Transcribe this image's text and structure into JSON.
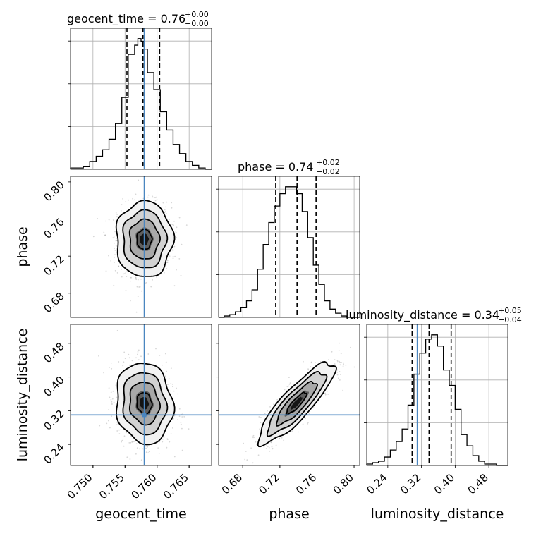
{
  "chart_data": {
    "type": "corner",
    "parameters": [
      "geocent_time",
      "phase",
      "luminosity_distance"
    ],
    "truths": {
      "geocent_time": 0.758,
      "phase": null,
      "luminosity_distance": 0.31
    },
    "axis_ranges": {
      "geocent_time": [
        0.7465,
        0.7685
      ],
      "phase": [
        0.654,
        0.806
      ],
      "luminosity_distance": [
        0.19,
        0.525
      ]
    },
    "ticks": {
      "geocent_time": [
        0.75,
        0.755,
        0.76,
        0.765
      ],
      "phase": [
        0.68,
        0.72,
        0.76,
        0.8
      ],
      "luminosity_distance": [
        0.24,
        0.32,
        0.4,
        0.48
      ]
    },
    "tick_labels": {
      "geocent_time": [
        "0.750",
        "0.755",
        "0.760",
        "0.765"
      ],
      "phase": [
        "0.68",
        "0.72",
        "0.76",
        "0.80"
      ],
      "luminosity_distance": [
        "0.24",
        "0.32",
        "0.40",
        "0.48"
      ]
    },
    "xlabels": [
      "geocent_time",
      "phase",
      "luminosity_distance"
    ],
    "ylabels": [
      "phase",
      "luminosity_distance"
    ],
    "titles": [
      {
        "param": "geocent_time",
        "label": "geocent_time = 0.76",
        "plus": "+0.00",
        "minus": "−0.00"
      },
      {
        "param": "phase",
        "label": "phase = 0.74",
        "plus": "+0.02",
        "minus": "−0.02"
      },
      {
        "param": "luminosity_distance",
        "label": "luminosity_distance = 0.34",
        "plus": "+0.05",
        "minus": "−0.04"
      }
    ],
    "quantiles": {
      "geocent_time": [
        0.7553,
        0.7578,
        0.7604
      ],
      "phase": [
        0.7155,
        0.7385,
        0.759
      ],
      "luminosity_distance": [
        0.2978,
        0.338,
        0.3905
      ]
    },
    "marginals": {
      "geocent_time": {
        "edges": [
          0.7465,
          0.7475,
          0.7485,
          0.7495,
          0.7505,
          0.7515,
          0.7525,
          0.7535,
          0.7545,
          0.7555,
          0.7565,
          0.757,
          0.7575,
          0.758,
          0.7585,
          0.7595,
          0.7605,
          0.7615,
          0.7625,
          0.7635,
          0.7645,
          0.7655,
          0.7665,
          0.7675,
          0.7685
        ],
        "counts": [
          1,
          1,
          2,
          6,
          10,
          15,
          23,
          35,
          55,
          88,
          95,
          100,
          98,
          92,
          74,
          61,
          44,
          30,
          19,
          12,
          6,
          3,
          1,
          0
        ]
      },
      "phase": {
        "edges": [
          0.654,
          0.66,
          0.666,
          0.672,
          0.678,
          0.684,
          0.69,
          0.696,
          0.702,
          0.708,
          0.714,
          0.72,
          0.726,
          0.732,
          0.738,
          0.744,
          0.75,
          0.756,
          0.762,
          0.768,
          0.774,
          0.78,
          0.786,
          0.792,
          0.798,
          0.806
        ],
        "counts": [
          0,
          1,
          2,
          4,
          7,
          12,
          20,
          35,
          53,
          69,
          81,
          90,
          95,
          95,
          90,
          77,
          58,
          38,
          24,
          12,
          6,
          3,
          1,
          0,
          0
        ]
      },
      "luminosity_distance": {
        "edges": [
          0.19,
          0.204,
          0.218,
          0.232,
          0.246,
          0.26,
          0.274,
          0.288,
          0.302,
          0.316,
          0.33,
          0.344,
          0.358,
          0.372,
          0.386,
          0.4,
          0.414,
          0.428,
          0.442,
          0.456,
          0.47,
          0.484,
          0.498,
          0.512,
          0.525
        ],
        "counts": [
          1,
          2,
          3,
          6,
          11,
          17,
          26,
          43,
          65,
          80,
          90,
          93,
          85,
          68,
          57,
          40,
          22,
          14,
          7,
          3,
          1,
          1,
          0,
          0
        ]
      }
    },
    "pairs": [
      {
        "x": "geocent_time",
        "y": "phase",
        "mean": [
          0.758,
          0.738
        ],
        "std": [
          0.0021,
          0.0195
        ],
        "corr": 0.0
      },
      {
        "x": "geocent_time",
        "y": "luminosity_distance",
        "mean": [
          0.758,
          0.338
        ],
        "std": [
          0.0021,
          0.046
        ],
        "corr": -0.1
      },
      {
        "x": "phase",
        "y": "luminosity_distance",
        "mean": [
          0.738,
          0.338
        ],
        "std": [
          0.0195,
          0.046
        ],
        "corr": 0.86
      }
    ]
  }
}
